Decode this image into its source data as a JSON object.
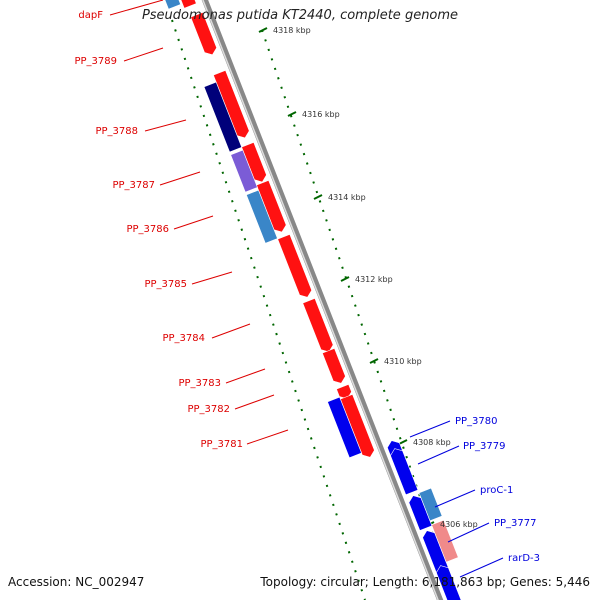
{
  "title": "Pseudomonas putida KT2440, complete genome",
  "accession": "Accession: NC_002947",
  "summary": "Topology: circular; Length: 6,181,863 bp; Genes: 5,446",
  "colors": {
    "forward_gene": "#ff1111",
    "reverse_gene": "#0000ee",
    "forward_label": "#dd0000",
    "reverse_label": "#0000dd",
    "tick": "#006600",
    "backbone": "#888888"
  },
  "ticks": [
    {
      "label": "4318 kbp"
    },
    {
      "label": "4316 kbp"
    },
    {
      "label": "4314 kbp"
    },
    {
      "label": "4312 kbp"
    },
    {
      "label": "4310 kbp"
    },
    {
      "label": "4308 kbp"
    },
    {
      "label": "4306 kbp"
    }
  ],
  "forward_genes": [
    {
      "label": "dapF"
    },
    {
      "label": "PP_3789"
    },
    {
      "label": "PP_3788"
    },
    {
      "label": "PP_3787"
    },
    {
      "label": "PP_3786"
    },
    {
      "label": "PP_3785"
    },
    {
      "label": "PP_3784"
    },
    {
      "label": "PP_3783"
    },
    {
      "label": "PP_3782"
    },
    {
      "label": "PP_3781"
    }
  ],
  "reverse_genes": [
    {
      "label": "PP_3780"
    },
    {
      "label": "PP_3779"
    },
    {
      "label": "proC-1"
    },
    {
      "label": "PP_3777"
    },
    {
      "label": "rarD-3"
    }
  ]
}
